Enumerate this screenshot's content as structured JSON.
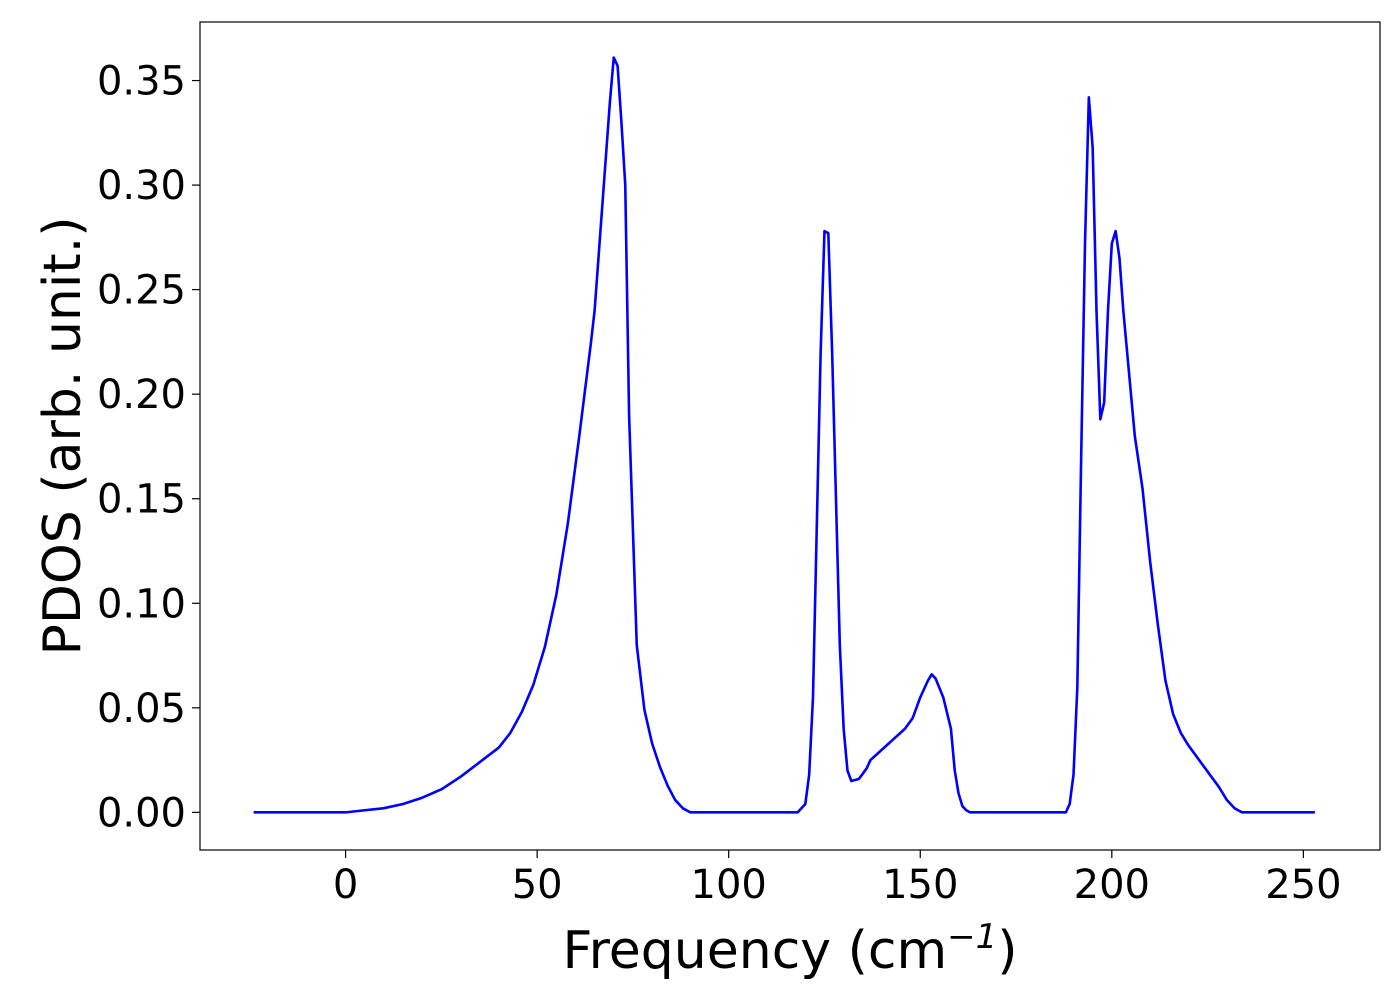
{
  "chart_data": {
    "type": "line",
    "title": "",
    "xlabel": "Frequency (cm",
    "xlabel_superscript": "−1",
    "xlabel_suffix": ")",
    "ylabel": "PDOS (arb. unit.)",
    "xlim": [
      -38,
      270
    ],
    "ylim": [
      -0.018,
      0.378
    ],
    "xticks": [
      0,
      50,
      100,
      150,
      200,
      250
    ],
    "xtick_labels": [
      "0",
      "50",
      "100",
      "150",
      "200",
      "250"
    ],
    "yticks": [
      0.0,
      0.05,
      0.1,
      0.15,
      0.2,
      0.25,
      0.3,
      0.35
    ],
    "ytick_labels": [
      "0.00",
      "0.05",
      "0.10",
      "0.15",
      "0.20",
      "0.25",
      "0.30",
      "0.35"
    ],
    "grid": false,
    "legend": "none",
    "series": [
      {
        "color": "#0000ff",
        "x": [
          -24,
          0,
          5,
          10,
          15,
          20,
          25,
          30,
          35,
          40,
          43,
          46,
          49,
          52,
          55,
          58,
          61,
          64,
          65,
          67,
          69,
          70,
          71,
          72,
          73,
          74,
          76,
          78,
          80,
          82,
          84,
          86,
          88,
          90,
          100,
          110,
          118,
          120,
          121,
          122,
          124,
          125,
          126,
          127,
          128,
          129,
          130,
          131,
          132,
          134,
          136,
          137,
          140,
          143,
          146,
          148,
          150,
          152,
          153,
          154,
          156,
          158,
          159,
          160,
          161,
          162,
          163,
          164,
          165,
          170,
          180,
          188,
          189,
          190,
          191,
          192,
          193,
          194,
          195,
          196,
          197,
          198,
          199,
          200,
          201,
          202,
          203,
          204,
          205,
          206,
          208,
          210,
          212,
          214,
          216,
          218,
          220,
          222,
          224,
          226,
          228,
          230,
          232,
          234,
          236,
          240,
          253
        ],
        "y": [
          0,
          0,
          0.001,
          0.002,
          0.004,
          0.007,
          0.011,
          0.017,
          0.024,
          0.031,
          0.038,
          0.048,
          0.061,
          0.079,
          0.104,
          0.138,
          0.18,
          0.224,
          0.24,
          0.29,
          0.34,
          0.361,
          0.357,
          0.33,
          0.3,
          0.19,
          0.08,
          0.049,
          0.033,
          0.022,
          0.013,
          0.006,
          0.002,
          0,
          0,
          0,
          0,
          0.004,
          0.018,
          0.055,
          0.22,
          0.278,
          0.277,
          0.22,
          0.15,
          0.08,
          0.04,
          0.02,
          0.015,
          0.016,
          0.021,
          0.025,
          0.03,
          0.035,
          0.04,
          0.045,
          0.055,
          0.063,
          0.066,
          0.064,
          0.055,
          0.04,
          0.02,
          0.009,
          0.003,
          0.001,
          0,
          0,
          0,
          0,
          0,
          0,
          0.004,
          0.018,
          0.06,
          0.17,
          0.272,
          0.342,
          0.318,
          0.24,
          0.188,
          0.196,
          0.24,
          0.272,
          0.278,
          0.265,
          0.24,
          0.22,
          0.2,
          0.18,
          0.155,
          0.12,
          0.09,
          0.063,
          0.047,
          0.038,
          0.032,
          0.027,
          0.022,
          0.017,
          0.012,
          0.006,
          0.002,
          0,
          0,
          0,
          0
        ]
      }
    ]
  }
}
